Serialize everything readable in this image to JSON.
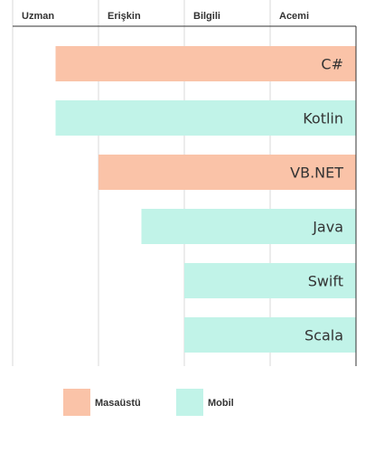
{
  "chart_data": {
    "type": "bar",
    "orientation": "horizontal",
    "axis_categories": [
      "Uzman",
      "Erişkin",
      "Bilgili",
      "Acemi"
    ],
    "axis_position": "top",
    "xlim": [
      0,
      4
    ],
    "grid": true,
    "categories": [
      "C#",
      "Kotlin",
      "VB.NET",
      "Java",
      "Swift",
      "Scala"
    ],
    "values": [
      3.5,
      3.5,
      3.0,
      2.5,
      2.0,
      2.0
    ],
    "groups": [
      "Masaüstü",
      "Mobil",
      "Masaüstü",
      "Mobil",
      "Mobil",
      "Mobil"
    ],
    "series": [
      {
        "name": "Masaüstü",
        "color": "#fac3a8"
      },
      {
        "name": "Mobil",
        "color": "#c1f3e8"
      }
    ],
    "legend_position": "bottom-left"
  }
}
